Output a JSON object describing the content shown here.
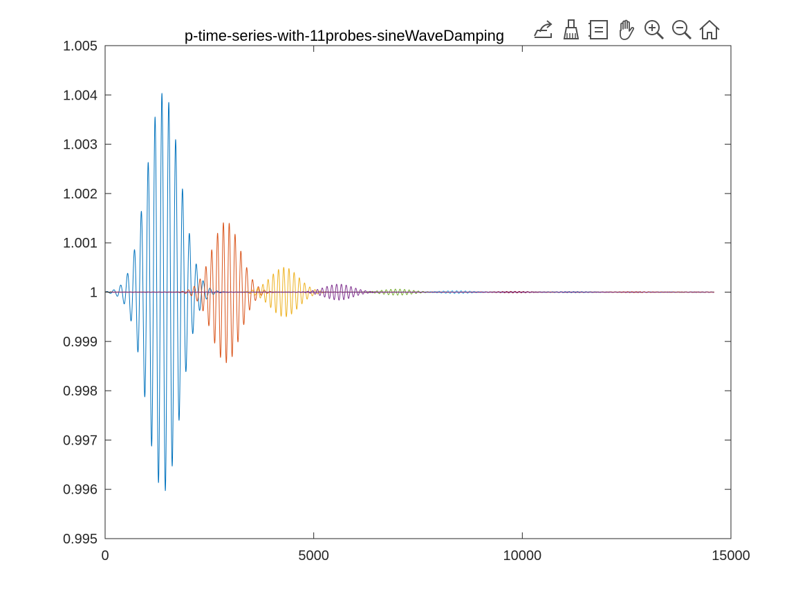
{
  "toolbar": {
    "icons": [
      "export-icon",
      "brush-icon",
      "legend-icon",
      "pan-icon",
      "zoom-in-icon",
      "zoom-out-icon",
      "home-icon"
    ]
  },
  "chart_data": {
    "type": "line",
    "title": "p-time-series-with-11probes-sineWaveDamping",
    "xlabel": "",
    "ylabel": "",
    "xlim": [
      0,
      15000
    ],
    "ylim": [
      0.995,
      1.005
    ],
    "xticks": [
      0,
      5000,
      10000,
      15000
    ],
    "xtick_labels": [
      "0",
      "5000",
      "10000",
      "15000"
    ],
    "yticks": [
      0.995,
      0.996,
      0.997,
      0.998,
      0.999,
      1,
      1.001,
      1.002,
      1.003,
      1.004,
      1.005
    ],
    "ytick_labels": [
      "0.995",
      "0.996",
      "0.997",
      "0.998",
      "0.999",
      "1",
      "1.001",
      "1.002",
      "1.003",
      "1.004",
      "1.005"
    ],
    "grid": false,
    "box": true,
    "x_end": 14600,
    "series": [
      {
        "color": "#0072BD",
        "center": 1400,
        "width": 560,
        "amplitude": 0.00405,
        "period": 165,
        "tail": 3e-06
      },
      {
        "color": "#D95319",
        "center": 2900,
        "width": 480,
        "amplitude": 0.00143,
        "period": 140,
        "tail": 4e-06
      },
      {
        "color": "#EDB120",
        "center": 4300,
        "width": 480,
        "amplitude": 0.0005,
        "period": 125,
        "tail": 3e-06
      },
      {
        "color": "#7E2F8E",
        "center": 5600,
        "width": 480,
        "amplitude": 0.00016,
        "period": 115,
        "tail": 3e-06
      },
      {
        "color": "#77AC30",
        "center": 7000,
        "width": 500,
        "amplitude": 6e-05,
        "period": 110,
        "tail": 2e-06
      },
      {
        "color": "#4DBEEE",
        "center": 8400,
        "width": 550,
        "amplitude": 3e-05,
        "period": 105,
        "tail": 1e-06
      },
      {
        "color": "#A2142F",
        "center": 9800,
        "width": 550,
        "amplitude": 1.5e-05,
        "period": 100,
        "tail": 1e-06
      },
      {
        "color": "#0072BD",
        "center": 11200,
        "width": 600,
        "amplitude": 1e-05,
        "period": 100,
        "tail": 1e-06
      },
      {
        "color": "#D95319",
        "center": 12700,
        "width": 600,
        "amplitude": 1e-05,
        "period": 100,
        "tail": 1e-06
      },
      {
        "color": "#EDB120",
        "center": 13800,
        "width": 600,
        "amplitude": 7e-06,
        "period": 100,
        "tail": 5e-07
      },
      {
        "color": "#7E2F8E",
        "center": 14300,
        "width": 600,
        "amplitude": 5e-06,
        "period": 100,
        "tail": 5e-07
      }
    ]
  }
}
